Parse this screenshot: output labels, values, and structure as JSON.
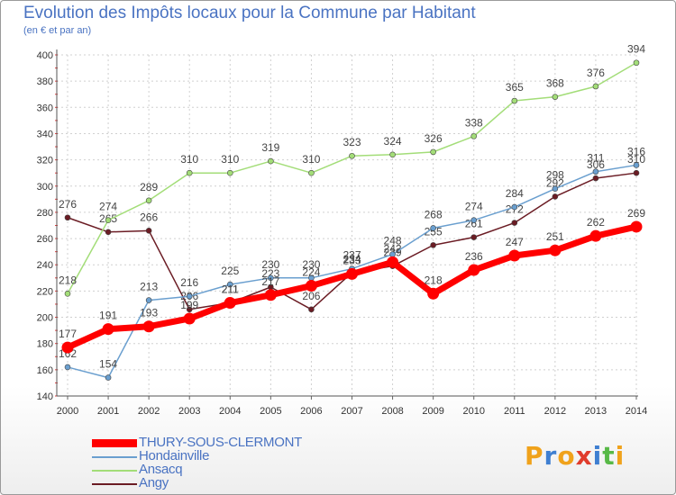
{
  "chart_data": {
    "type": "line",
    "title": "Evolution des Impôts locaux pour la Commune par Habitant",
    "subtitle": "(en € et par an)",
    "xlabel": "",
    "ylabel": "",
    "x": [
      "2000",
      "2001",
      "2002",
      "2003",
      "2004",
      "2005",
      "2006",
      "2007",
      "2008",
      "2009",
      "2010",
      "2011",
      "2012",
      "2013",
      "2014"
    ],
    "ylim": [
      140,
      400
    ],
    "yticks": [
      140,
      160,
      180,
      200,
      220,
      240,
      260,
      280,
      300,
      320,
      340,
      360,
      380,
      400
    ],
    "grid": true,
    "legend_position": "bottom-left",
    "series": [
      {
        "name": "Angy",
        "color": "#6b1c24",
        "values": [
          276,
          265,
          266,
          206,
          211,
          223,
          206,
          234,
          239,
          255,
          261,
          272,
          292,
          306,
          310
        ]
      },
      {
        "name": "Hondainville",
        "color": "#6a9fcf",
        "values": [
          162,
          154,
          213,
          216,
          225,
          230,
          230,
          237,
          248,
          268,
          274,
          284,
          298,
          311,
          316
        ]
      },
      {
        "name": "Ansacq",
        "color": "#a3dd78",
        "values": [
          218,
          274,
          289,
          310,
          310,
          319,
          310,
          323,
          324,
          326,
          338,
          365,
          368,
          376,
          394
        ]
      },
      {
        "name": "THURY-SOUS-CLERMONT",
        "color": "#ff0000",
        "values": [
          177,
          191,
          193,
          199,
          211,
          217,
          224,
          233,
          242,
          218,
          236,
          247,
          251,
          262,
          269
        ]
      }
    ],
    "legend_order": [
      "THURY-SOUS-CLERMONT",
      "Hondainville",
      "Ansacq",
      "Angy"
    ]
  },
  "logo": {
    "letters": [
      "P",
      "r",
      "o",
      "x",
      "i",
      "t",
      "i"
    ],
    "colors": [
      "#f0a21b",
      "#3f7fd1",
      "#f0a21b",
      "#e03c2c",
      "#3f7fd1",
      "#58b947",
      "#f0a21b"
    ]
  }
}
